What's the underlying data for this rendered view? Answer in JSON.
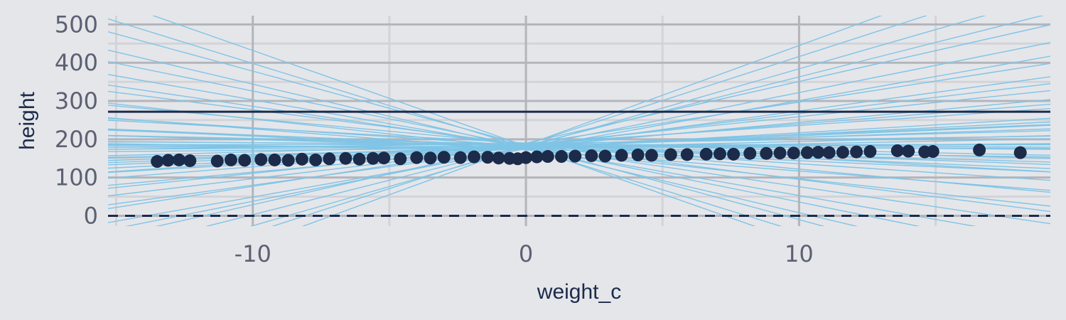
{
  "chart_data": {
    "type": "scatter",
    "title": "",
    "xlabel": "weight_c",
    "ylabel": "height",
    "xlim": [
      -15.3,
      19.2
    ],
    "ylim": [
      -27,
      523
    ],
    "x_ticks": [
      -10,
      0,
      10
    ],
    "x_tick_labels": [
      "-10",
      "0",
      "10"
    ],
    "x_minor_ticks": [
      -15,
      -5,
      5,
      15
    ],
    "y_ticks": [
      0,
      100,
      200,
      300,
      400,
      500
    ],
    "y_tick_labels": [
      "0",
      "100",
      "200",
      "300",
      "400",
      "500"
    ],
    "y_minor_ticks": [
      50,
      150,
      250,
      350,
      450
    ],
    "grid": true,
    "colors": {
      "background": "#e5e6ea",
      "points": "#1c2b4a",
      "prior_lines": "#7fc4e6",
      "reference_lines": "#1c2b4a",
      "grid_major": "#b3b5bb",
      "grid_minor": "#d2d4d8"
    },
    "reference_lines": [
      {
        "y": 272,
        "style": "solid"
      },
      {
        "y": 0,
        "style": "dashed"
      }
    ],
    "points": {
      "x": [
        -13.5,
        -13.1,
        -12.7,
        -12.3,
        -11.3,
        -10.8,
        -10.3,
        -9.7,
        -9.2,
        -8.7,
        -8.2,
        -7.7,
        -7.2,
        -6.6,
        -6.1,
        -5.6,
        -5.2,
        -4.6,
        -4.0,
        -3.5,
        -3.0,
        -2.4,
        -1.9,
        -1.4,
        -1.0,
        -0.6,
        -0.3,
        0.0,
        0.4,
        0.8,
        1.3,
        1.8,
        2.4,
        2.9,
        3.5,
        4.1,
        4.6,
        5.3,
        5.9,
        6.6,
        7.1,
        7.6,
        8.2,
        8.8,
        9.3,
        9.8,
        10.3,
        10.7,
        11.1,
        11.6,
        12.1,
        12.6,
        13.6,
        14.0,
        14.6,
        14.9,
        16.6,
        18.1
      ],
      "y": [
        142,
        145,
        146,
        144,
        143,
        146,
        145,
        147,
        146,
        145,
        148,
        146,
        149,
        150,
        148,
        150,
        151,
        149,
        152,
        151,
        153,
        152,
        154,
        153,
        151,
        150,
        149,
        152,
        154,
        155,
        155,
        156,
        157,
        156,
        158,
        159,
        158,
        160,
        160,
        161,
        162,
        161,
        163,
        163,
        164,
        164,
        165,
        166,
        165,
        166,
        167,
        168,
        170,
        169,
        167,
        168,
        172,
        165
      ]
    },
    "prior_lines": {
      "x_mean_offset": 0,
      "intercepts": [
        178,
        181,
        186,
        175,
        188,
        172,
        183,
        190,
        176,
        184,
        179,
        187,
        173,
        185,
        180,
        182,
        177,
        189,
        174,
        186,
        181,
        183,
        178,
        176,
        188,
        184,
        179,
        185,
        182,
        177,
        187,
        175,
        180,
        190,
        183,
        179,
        186,
        181,
        176,
        184,
        178,
        182,
        185,
        180,
        187,
        177,
        183,
        179,
        181,
        186
      ],
      "slopes": [
        -12.5,
        -10.5,
        -9.1,
        -7.8,
        -6.6,
        -5.5,
        -4.7,
        -3.9,
        -3.2,
        -2.6,
        -2.0,
        -1.5,
        -1.0,
        -0.6,
        -0.2,
        0.2,
        0.6,
        1.0,
        1.4,
        1.9,
        2.4,
        2.9,
        3.5,
        4.1,
        4.8,
        5.6,
        6.5,
        7.4,
        8.5,
        9.7,
        11.0,
        12.6,
        14.2,
        16.1,
        18.0,
        20.5,
        23.0,
        -14.5,
        -16.8,
        -19.4,
        -22.0,
        -25.0,
        26.0,
        0.4,
        -0.4,
        1.7,
        -1.7,
        3.0,
        -3.0,
        0.0
      ]
    }
  }
}
